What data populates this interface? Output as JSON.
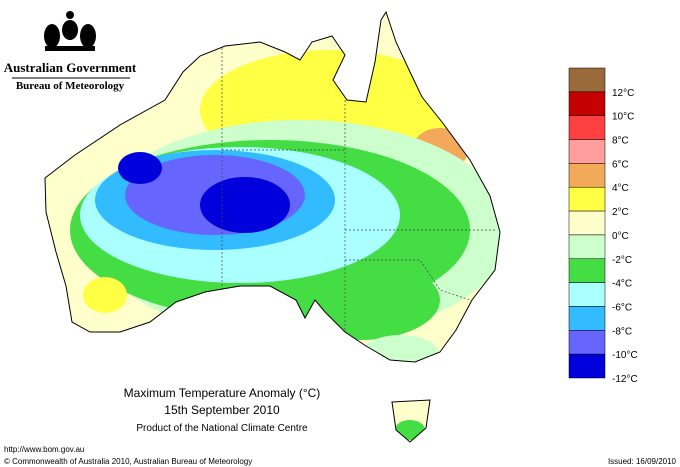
{
  "header": {
    "government": "Australian Government",
    "bureau": "Bureau of Meteorology"
  },
  "map": {
    "title": "Maximum Temperature Anomaly (°C)",
    "date": "15th September 2010",
    "product": "Product of the National Climate Centre"
  },
  "legend": {
    "labels": [
      "12°C",
      "10°C",
      "8°C",
      "6°C",
      "4°C",
      "2°C",
      "0°C",
      "-2°C",
      "-4°C",
      "-6°C",
      "-8°C",
      "-10°C",
      "-12°C"
    ],
    "colors": [
      "#9b6a3a",
      "#c40000",
      "#ff4040",
      "#ff9c9c",
      "#f2a95a",
      "#ffff44",
      "#ffffcc",
      "#ccffcc",
      "#44dd44",
      "#aaffff",
      "#33bbff",
      "#6666ff",
      "#0000dd"
    ]
  },
  "footer": {
    "url": "http://www.bom.gov.au",
    "copyright": "© Commonwealth of Australia 2010, Australian Bureau of Meteorology",
    "issued": "Issued: 16/09/2010"
  }
}
